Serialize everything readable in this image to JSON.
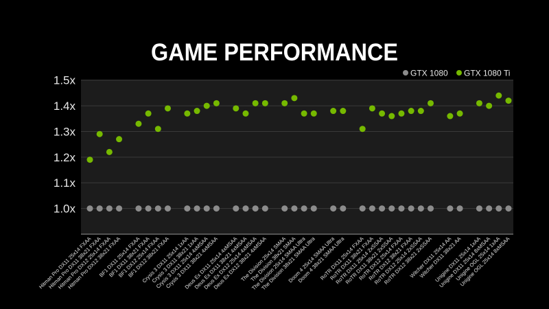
{
  "chart_data": {
    "type": "scatter",
    "title": "GAME PERFORMANCE",
    "xlabel": "",
    "ylabel": "",
    "ylim": [
      0.9,
      1.5
    ],
    "yticks": [
      1.0,
      1.1,
      1.2,
      1.3,
      1.4,
      1.5
    ],
    "ytick_labels": [
      "1.0x",
      "1.1x",
      "1.2x",
      "1.3x",
      "1.4x",
      "1.5x"
    ],
    "grid": true,
    "legend_position": "top-right",
    "categories": [
      "Hitman Pro DX11 25x14 FXAA",
      "Hitman Pro DX11 38x21 FXAA",
      "Hitman Pro DX12 25x14 FXAA",
      "Hitman Pro DX12 38x21 FXAA",
      "",
      "BF1 DX11 25x14 FXAA",
      "BF1 DX11 38x21 FXAA",
      "BF1 DX12 25x14 FXAA",
      "BF1 DX12 38x21 FXAA",
      "",
      "Crysis 3 DX11 25x14 1xAA",
      "Crysis 3 DX11 38x21 1xAA",
      "Crysis 3 DX11 25x14 4xMSAA",
      "Crysis 3 DX11 38x21 4xMSAA",
      "",
      "Deus Ex DX11 25x14 4xMSAA",
      "Deus Ex DX11 38x21 4xMSAA",
      "Deus Ex DX12 25x14 4xMSAA",
      "Deus Ex DX12 38x21 4xMSAA",
      "",
      "The Division 25x14 SMAA",
      "The Division 38x21 SMAA",
      "The Division 25x14 SMAA Ultra",
      "The Division 38x21 SMAA Ultra",
      "",
      "Doom 4 25x14 SMAA Ultra",
      "Doom 4 38x21 SMAA Ultra",
      "",
      "RoTR DX11 25x14 FXAA",
      "RoTR DX11 38x21 FXAA",
      "RoTR DX11 25x14 2xSSAA",
      "RoTR DX11 38x21 2xSSAA",
      "RoTR DX12 25x14 FXAA",
      "RoTR DX12 38x21 FXAA",
      "RoTR DX12 25x14 2xSSAA",
      "RoTR DX12 38x21 2xSSAA",
      "",
      "Witcher DX11 25x14 AA",
      "Witcher DX11 38x21 AA",
      "",
      "Unigine DX11 25x14 1xAA",
      "Unigine DX11 25x14 8xMSAA",
      "Unigine OGL 25x14 1xAA",
      "Unigine OGL 25x14 8xMSAA"
    ],
    "series": [
      {
        "name": "GTX 1080",
        "color": "#8c8c8c",
        "values": [
          1.0,
          1.0,
          1.0,
          1.0,
          null,
          1.0,
          1.0,
          1.0,
          1.0,
          null,
          1.0,
          1.0,
          1.0,
          1.0,
          null,
          1.0,
          1.0,
          1.0,
          1.0,
          null,
          1.0,
          1.0,
          1.0,
          1.0,
          null,
          1.0,
          1.0,
          null,
          1.0,
          1.0,
          1.0,
          1.0,
          1.0,
          1.0,
          1.0,
          1.0,
          null,
          1.0,
          1.0,
          null,
          1.0,
          1.0,
          1.0,
          1.0
        ]
      },
      {
        "name": "GTX 1080 Ti",
        "color": "#76b900",
        "values": [
          1.19,
          1.29,
          1.22,
          1.27,
          null,
          1.33,
          1.37,
          1.31,
          1.39,
          null,
          1.37,
          1.38,
          1.4,
          1.41,
          null,
          1.39,
          1.37,
          1.41,
          1.41,
          null,
          1.41,
          1.43,
          1.37,
          1.37,
          null,
          1.38,
          1.38,
          null,
          1.31,
          1.39,
          1.37,
          1.36,
          1.37,
          1.38,
          1.38,
          1.41,
          null,
          1.36,
          1.37,
          null,
          1.41,
          1.4,
          1.44,
          1.42
        ]
      }
    ]
  },
  "colors": {
    "background": "#000000",
    "plot_background": "#1c1c1c",
    "grid": "#3a3a3a"
  }
}
